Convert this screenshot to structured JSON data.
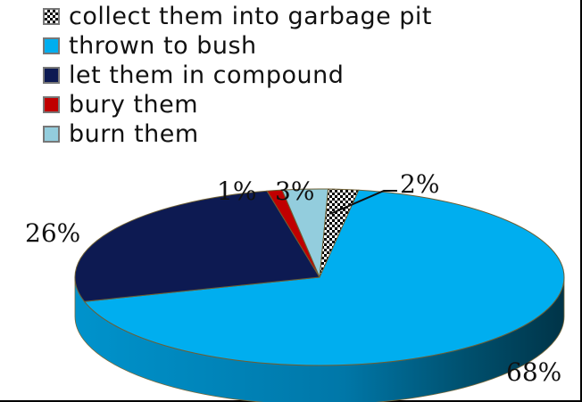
{
  "chart_data": {
    "type": "pie",
    "style": "3d",
    "legend_position": "top-left",
    "slices": [
      {
        "label": "collect them into garbage pit",
        "value": 2,
        "value_label": "2%",
        "color": "#111111",
        "pattern": "checker"
      },
      {
        "label": "thrown to bush",
        "value": 68,
        "value_label": "68%",
        "color": "#00AEEF"
      },
      {
        "label": "let them in compound",
        "value": 26,
        "value_label": "26%",
        "color": "#0D1A52"
      },
      {
        "label": "bury them",
        "value": 1,
        "value_label": "1%",
        "color": "#C00000"
      },
      {
        "label": "burn them",
        "value": 3,
        "value_label": "3%",
        "color": "#93CDDD"
      }
    ]
  }
}
